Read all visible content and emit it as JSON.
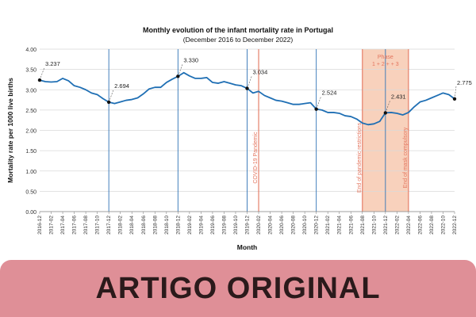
{
  "chart_data": {
    "type": "line",
    "title": "Monthly evolution of the infant mortality rate in Portugal",
    "subtitle": "(December 2016 to December 2022)",
    "xlabel": "Month",
    "ylabel": "Mortality rate per 1000 live births",
    "ylim": [
      0,
      4
    ],
    "yticks": [
      "0.00",
      "0.50",
      "1.00",
      "1.50",
      "2.00",
      "2.50",
      "3.00",
      "3.50",
      "4.00"
    ],
    "x": [
      "2016-12",
      "2017-01",
      "2017-02",
      "2017-03",
      "2017-04",
      "2017-05",
      "2017-06",
      "2017-07",
      "2017-08",
      "2017-09",
      "2017-10",
      "2017-11",
      "2017-12",
      "2018-01",
      "2018-02",
      "2018-03",
      "2018-04",
      "2018-05",
      "2018-06",
      "2018-07",
      "2018-08",
      "2018-09",
      "2018-10",
      "2018-11",
      "2018-12",
      "2019-01",
      "2019-02",
      "2019-03",
      "2019-04",
      "2019-05",
      "2019-06",
      "2019-07",
      "2019-08",
      "2019-09",
      "2019-10",
      "2019-11",
      "2019-12",
      "2020-01",
      "2020-02",
      "2020-03",
      "2020-04",
      "2020-05",
      "2020-06",
      "2020-07",
      "2020-08",
      "2020-09",
      "2020-10",
      "2020-11",
      "2020-12",
      "2021-01",
      "2021-02",
      "2021-03",
      "2021-04",
      "2021-05",
      "2021-06",
      "2021-07",
      "2021-08",
      "2021-09",
      "2021-10",
      "2021-11",
      "2021-12",
      "2022-01",
      "2022-02",
      "2022-03",
      "2022-04",
      "2022-05",
      "2022-06",
      "2022-07",
      "2022-08",
      "2022-09",
      "2022-10",
      "2022-11",
      "2022-12"
    ],
    "xtick_labels": [
      "2016-12",
      "2017-02",
      "2017-04",
      "2017-06",
      "2017-08",
      "2017-10",
      "2017-12",
      "2018-02",
      "2018-04",
      "2018-06",
      "2018-08",
      "2018-10",
      "2018-12",
      "2019-02",
      "2019-04",
      "2019-06",
      "2019-08",
      "2019-10",
      "2019-12",
      "2020-02",
      "2020-04",
      "2020-06",
      "2020-08",
      "2020-10",
      "2020-12",
      "2021-02",
      "2021-04",
      "2021-06",
      "2021-08",
      "2021-10",
      "2021-12",
      "2022-02",
      "2022-04",
      "2022-06",
      "2022-08",
      "2022-10",
      "2022-12"
    ],
    "series": [
      {
        "values": [
          3.237,
          3.2,
          3.19,
          3.2,
          3.28,
          3.22,
          3.1,
          3.06,
          3.0,
          2.92,
          2.88,
          2.78,
          2.694,
          2.66,
          2.7,
          2.74,
          2.76,
          2.8,
          2.9,
          3.02,
          3.06,
          3.06,
          3.18,
          3.26,
          3.33,
          3.42,
          3.34,
          3.28,
          3.28,
          3.3,
          3.18,
          3.16,
          3.2,
          3.16,
          3.12,
          3.1,
          3.034,
          2.92,
          2.96,
          2.86,
          2.8,
          2.74,
          2.72,
          2.68,
          2.64,
          2.64,
          2.66,
          2.68,
          2.524,
          2.5,
          2.44,
          2.44,
          2.42,
          2.36,
          2.34,
          2.28,
          2.18,
          2.14,
          2.16,
          2.22,
          2.431,
          2.44,
          2.42,
          2.38,
          2.44,
          2.58,
          2.7,
          2.74,
          2.8,
          2.86,
          2.92,
          2.88,
          2.775
        ],
        "color": "#1f6fb4"
      }
    ],
    "point_labels": [
      {
        "x": "2016-12",
        "label": "3.237"
      },
      {
        "x": "2017-12",
        "label": "2.694"
      },
      {
        "x": "2018-12",
        "label": "3.330"
      },
      {
        "x": "2019-12",
        "label": "3.034"
      },
      {
        "x": "2020-12",
        "label": "2.524"
      },
      {
        "x": "2021-12",
        "label": "2.431"
      },
      {
        "x": "2022-12",
        "label": "2.775"
      }
    ],
    "blue_vlines": [
      "2017-12",
      "2018-12",
      "2019-12",
      "2020-12",
      "2021-12"
    ],
    "orange_vlines": [
      {
        "x": "2020-02",
        "label": "COVID-19 Pandemic"
      },
      {
        "x": "2021-08",
        "label": "End of pandemic restrictions"
      },
      {
        "x": "2022-04",
        "label": "End of mask compulsory"
      }
    ],
    "shaded_region": {
      "from": "2021-08",
      "to": "2022-04",
      "label_line1": "Phase",
      "label_line2": "1 + 2 + + 3"
    },
    "grid": "horizontal",
    "colors": {
      "line": "#1f6fb4",
      "vline": "#2f73b6",
      "event": "#e3745d",
      "shade": "#f7c9b0",
      "banner": "#df8f97"
    }
  },
  "banner": {
    "text": "ARTIGO ORIGINAL"
  }
}
